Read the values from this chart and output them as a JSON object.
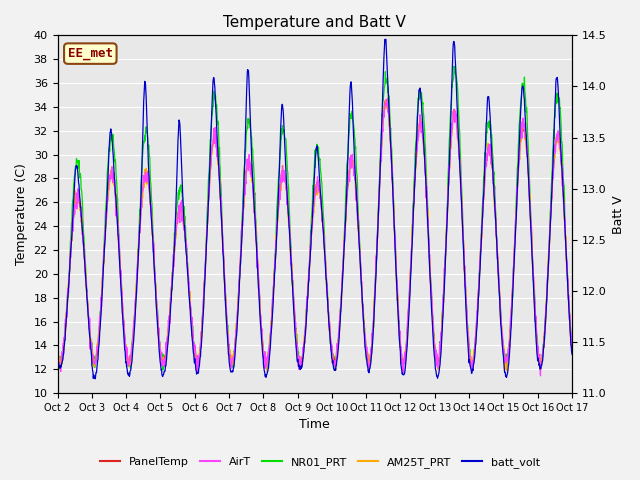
{
  "title": "Temperature and Batt V",
  "xlabel": "Time",
  "ylabel_left": "Temperature (C)",
  "ylabel_right": "Batt V",
  "ylim_left": [
    10,
    40
  ],
  "ylim_right": [
    11.0,
    14.5
  ],
  "annotation": "EE_met",
  "bg_color": "#f2f2f2",
  "plot_bg_color": "#e8e8e8",
  "series_colors": {
    "PanelTemp": "#dd2222",
    "AirT": "#ff44ff",
    "NR01_PRT": "#00dd00",
    "AM25T_PRT": "#ffaa00",
    "batt_volt": "#0000cc"
  },
  "x_tick_labels": [
    "Oct 2",
    "Oct 3",
    "Oct 4",
    "Oct 5",
    "Oct 6",
    "Oct 7",
    "Oct 8",
    "Oct 9",
    "Oct 10",
    "Oct 11",
    "Oct 12",
    "Oct 13",
    "Oct 14",
    "Oct 15",
    "Oct 16",
    "Oct 17"
  ],
  "num_days": 15,
  "points_per_day": 96,
  "title_fontsize": 11,
  "label_fontsize": 9,
  "tick_fontsize": 8,
  "xtick_fontsize": 7,
  "linewidth": 0.9
}
